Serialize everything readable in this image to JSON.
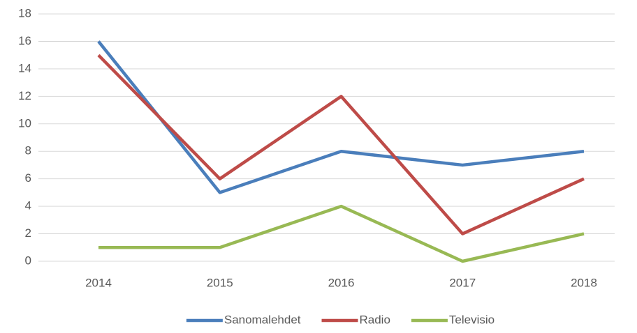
{
  "chart_data": {
    "type": "line",
    "categories": [
      "2014",
      "2015",
      "2016",
      "2017",
      "2018"
    ],
    "series": [
      {
        "name": "Sanomalehdet",
        "color": "#4a7ebb",
        "values": [
          16,
          5,
          8,
          7,
          8
        ]
      },
      {
        "name": "Radio",
        "color": "#be4b48",
        "values": [
          15,
          6,
          12,
          2,
          6
        ]
      },
      {
        "name": "Televisio",
        "color": "#98b954",
        "values": [
          1,
          1,
          4,
          0,
          2
        ]
      }
    ],
    "ylim": [
      0,
      18
    ],
    "yticks": [
      0,
      2,
      4,
      6,
      8,
      10,
      12,
      14,
      16,
      18
    ],
    "grid": true,
    "legend": "bottom"
  }
}
